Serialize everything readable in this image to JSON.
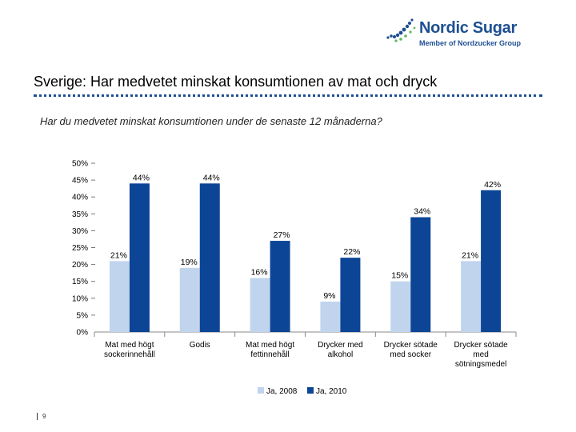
{
  "brand": {
    "name": "Nordic Sugar",
    "tagline": "Member of Nordzucker Group",
    "color": "#1d4f91",
    "accent": "#5cb85c"
  },
  "slide": {
    "title": "Sverige: Har medvetet minskat konsumtionen av mat och dryck",
    "subtitle": "Har du medvetet minskat konsumtionen under de senaste 12 månaderna?",
    "page_number": "9"
  },
  "chart_data": {
    "type": "bar",
    "title": "",
    "xlabel": "",
    "ylabel": "",
    "ylim": [
      0,
      50
    ],
    "yticks": [
      "0%",
      "5%",
      "10%",
      "15%",
      "20%",
      "25%",
      "30%",
      "35%",
      "40%",
      "45%",
      "50%"
    ],
    "categories": [
      [
        "Mat med högt",
        "sockerinnehåll"
      ],
      [
        "Godis"
      ],
      [
        "Mat med högt",
        "fettinnehåll"
      ],
      [
        "Drycker med",
        "alkohol"
      ],
      [
        "Drycker sötade",
        "med socker"
      ],
      [
        "Drycker sötade",
        "med",
        "sötningsmedel"
      ]
    ],
    "series": [
      {
        "name": "Ja, 2008",
        "color": "#c1d4ee",
        "values": [
          21,
          19,
          16,
          9,
          15,
          21
        ],
        "labels": [
          "21%",
          "19%",
          "16%",
          "9%",
          "15%",
          "21%"
        ]
      },
      {
        "name": "Ja, 2010",
        "color": "#0d4596",
        "values": [
          44,
          44,
          27,
          22,
          34,
          42
        ],
        "labels": [
          "44%",
          "44%",
          "27%",
          "22%",
          "34%",
          "42%"
        ]
      }
    ],
    "legend_position": "bottom-center",
    "grid": false
  }
}
